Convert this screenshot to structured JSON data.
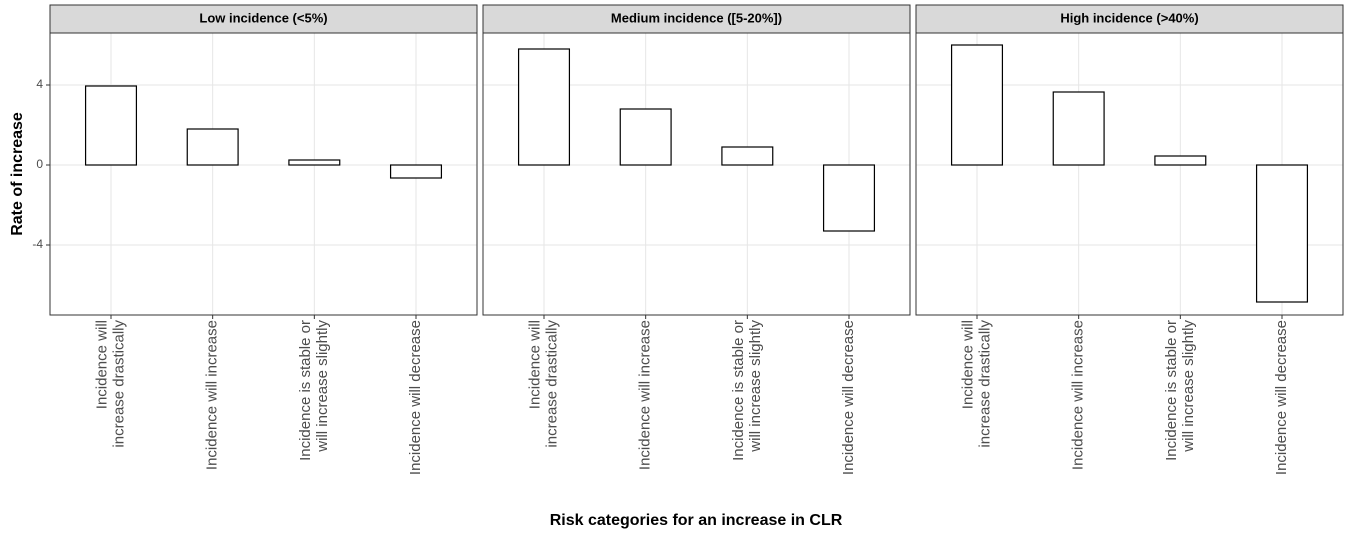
{
  "chart_data": {
    "type": "bar",
    "xlabel": "Risk categories for an increase in CLR",
    "ylabel": "Rate of increase",
    "ylim": [
      -7.5,
      6.6
    ],
    "yticks": [
      -4,
      0,
      4
    ],
    "grid": true,
    "fill": "#ffffff",
    "edgecolor": "#000000",
    "categories": [
      [
        "Incidence will",
        "increase drastically"
      ],
      [
        "Incidence will increase"
      ],
      [
        "Incidence is stable or",
        "will increase slightly"
      ],
      [
        "Incidence will decrease"
      ]
    ],
    "panels": [
      {
        "title": "Low incidence (<5%)",
        "values": [
          3.95,
          1.8,
          0.25,
          -0.65
        ]
      },
      {
        "title": "Medium incidence ([5-20%])",
        "values": [
          5.8,
          2.8,
          0.9,
          -3.3
        ]
      },
      {
        "title": "High incidence (>40%)",
        "values": [
          6.0,
          3.65,
          0.45,
          -6.85
        ]
      }
    ]
  }
}
